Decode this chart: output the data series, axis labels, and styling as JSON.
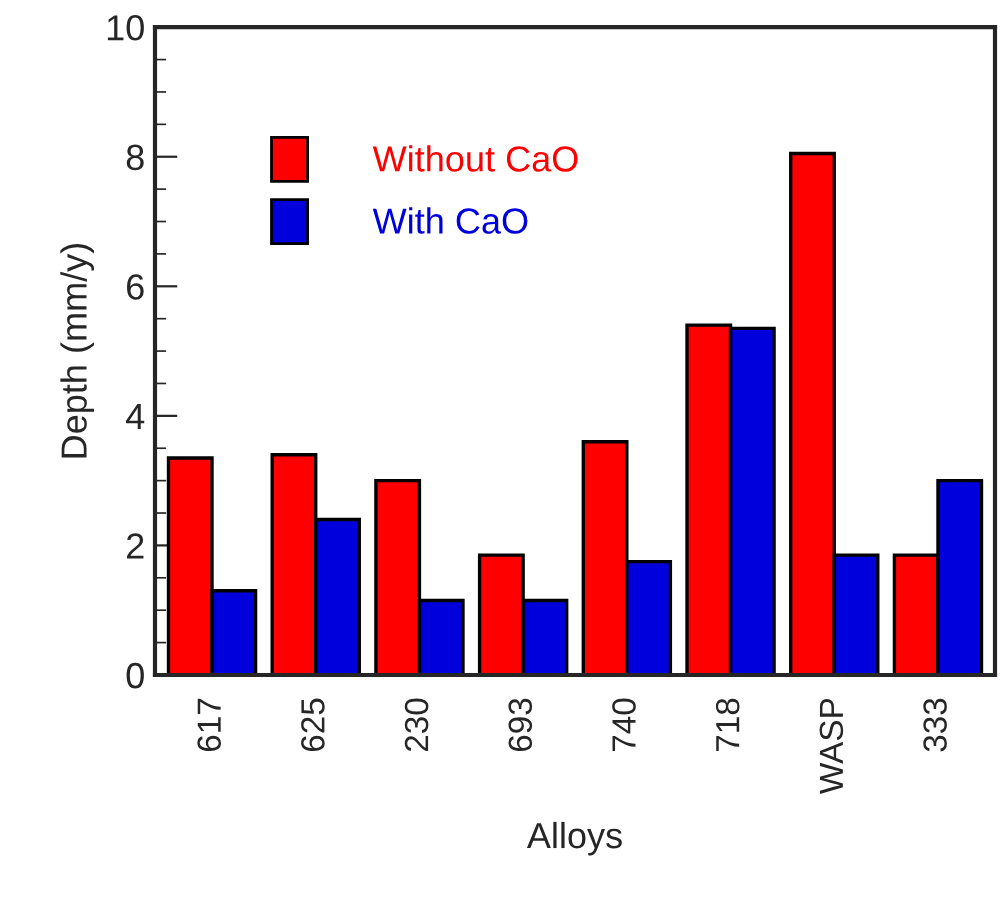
{
  "chart_data": {
    "type": "bar",
    "xlabel": "Alloys",
    "ylabel": "Depth (mm/y)",
    "categories": [
      "617",
      "625",
      "230",
      "693",
      "740",
      "718",
      "WASP",
      "333"
    ],
    "series": [
      {
        "name": "Without CaO",
        "color": "#ff0000",
        "values": [
          3.35,
          3.4,
          3.0,
          1.85,
          3.6,
          5.4,
          8.05,
          1.85
        ]
      },
      {
        "name": "With CaO",
        "color": "#0000dd",
        "values": [
          1.3,
          2.4,
          1.15,
          1.15,
          1.75,
          5.35,
          1.85,
          3.0
        ]
      }
    ],
    "ylim": [
      0,
      10
    ],
    "yticks": [
      0,
      2,
      4,
      6,
      8,
      10
    ],
    "grid": false,
    "legend": "top left"
  }
}
